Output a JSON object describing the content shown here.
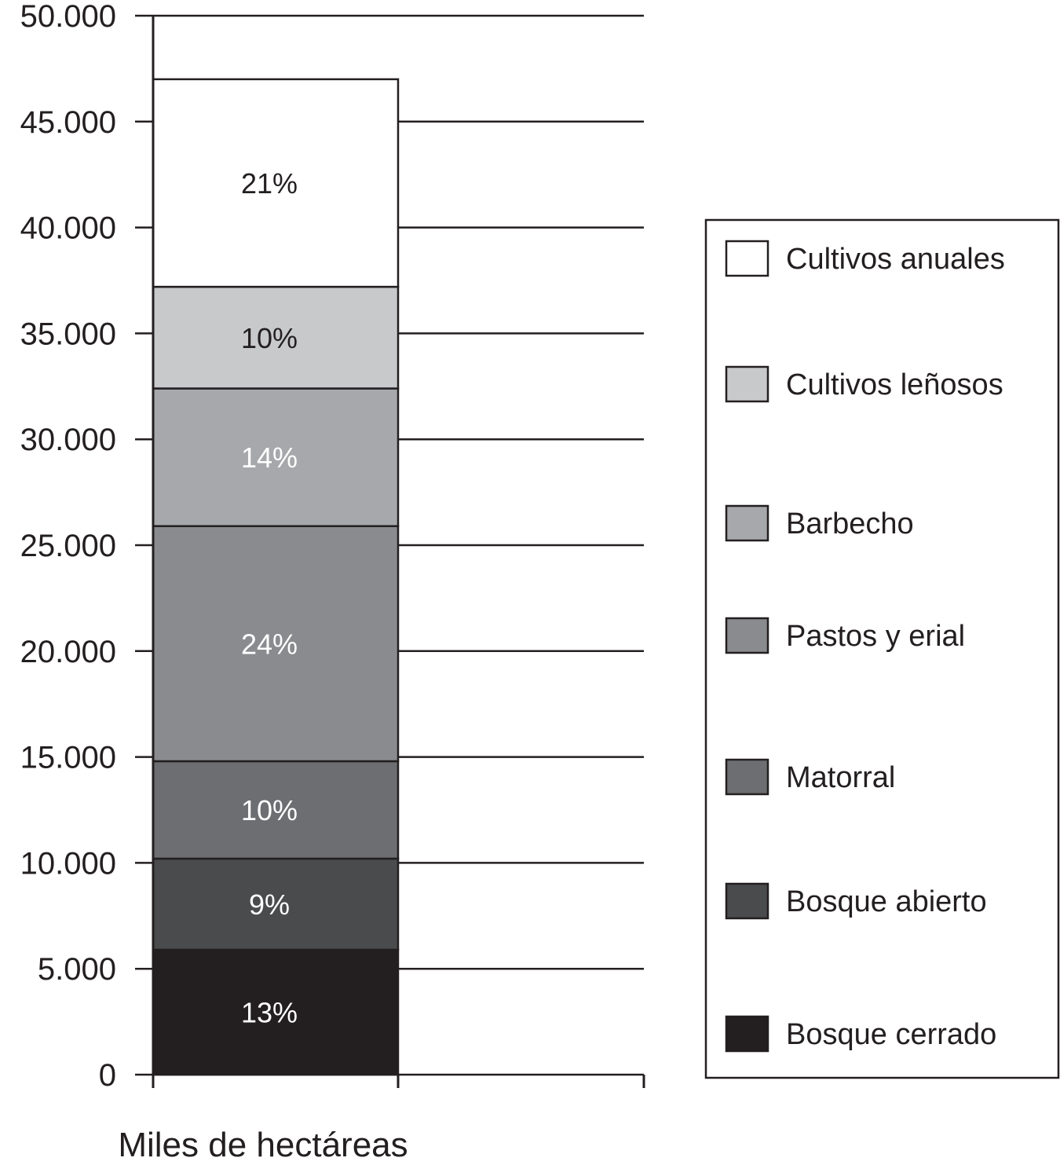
{
  "chart_data": {
    "type": "bar",
    "stacked": true,
    "xlabel": "Miles de hectáreas",
    "ylim": [
      0,
      50000
    ],
    "yticks": [
      "0",
      "5.000",
      "10.000",
      "15.000",
      "20.000",
      "25.000",
      "30.000",
      "35.000",
      "40.000",
      "45.000",
      "50.000"
    ],
    "grid": true,
    "legend_position": "right",
    "series": [
      {
        "name": "Bosque cerrado",
        "value": 5900,
        "label": "13%",
        "color": "#231f20",
        "text_color": "#ffffff"
      },
      {
        "name": "Bosque abierto",
        "value": 4300,
        "label": "9%",
        "color": "#4a4b4d",
        "text_color": "#ffffff"
      },
      {
        "name": "Matorral",
        "value": 4600,
        "label": "10%",
        "color": "#6d6e71",
        "text_color": "#ffffff"
      },
      {
        "name": "Pastos y erial",
        "value": 11100,
        "label": "24%",
        "color": "#8a8b8e",
        "text_color": "#ffffff"
      },
      {
        "name": "Barbecho",
        "value": 6500,
        "label": "14%",
        "color": "#a7a8ab",
        "text_color": "#ffffff"
      },
      {
        "name": "Cultivos leñosos",
        "value": 4800,
        "label": "10%",
        "color": "#c8c9cb",
        "text_color": "#231f20"
      },
      {
        "name": "Cultivos anuales",
        "value": 9800,
        "label": "21%",
        "color": "#ffffff",
        "text_color": "#231f20"
      }
    ],
    "legend_order": [
      "Cultivos anuales",
      "Cultivos leñosos",
      "Barbecho",
      "Pastos y erial",
      "Matorral",
      "Bosque abierto",
      "Bosque cerrado"
    ]
  }
}
